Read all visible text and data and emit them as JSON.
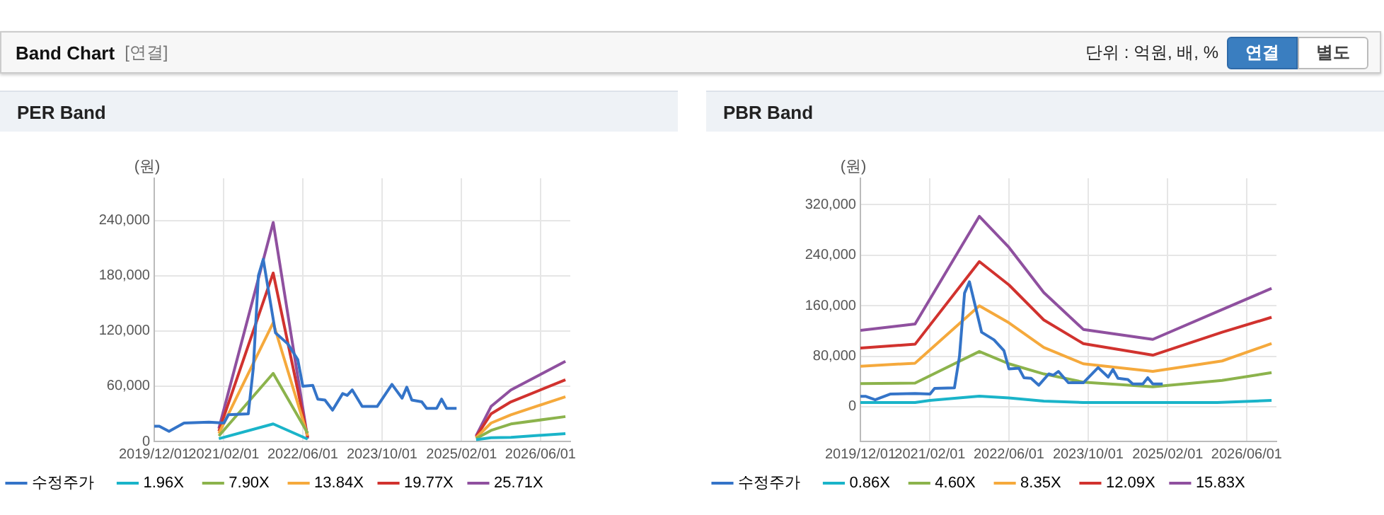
{
  "chart_data": [
    {
      "type": "other",
      "title": "Band Chart",
      "annotations": [
        "[연결]",
        "단위 : 억원, 배, %",
        "연결",
        "별도"
      ]
    },
    {
      "type": "line",
      "title": "PER Band",
      "ylabel": "(원)",
      "xlim": [
        "2019-12-01",
        "2026-12-01"
      ],
      "xticks": [
        {
          "value": "2019-12-01",
          "label": "2019/12/01"
        },
        {
          "value": "2021-02-01",
          "label": "2021/02/01"
        },
        {
          "value": "2022-06-01",
          "label": "2022/06/01"
        },
        {
          "value": "2023-10-01",
          "label": "2023/10/01"
        },
        {
          "value": "2025-02-01",
          "label": "2025/02/01"
        },
        {
          "value": "2026-06-01",
          "label": "2026/06/01"
        }
      ],
      "ylim": [
        0,
        286000
      ],
      "yticks": [
        0,
        {
          "value": 60000,
          "label": "60,000"
        },
        {
          "value": 120000,
          "label": "120,000"
        },
        {
          "value": 180000,
          "label": "180,000"
        },
        {
          "value": 240000,
          "label": "240,000"
        }
      ],
      "grid": true,
      "legend": "bottom",
      "marker": "none",
      "line_style": "solid",
      "series": [
        {
          "name": "수정주가",
          "color": "#3474c8",
          "x": [
            "2019-12",
            "2020-01",
            "2020-03",
            "2020-04",
            "2020-06",
            "2020-11",
            "2021-02",
            "2021-03",
            "2021-07",
            "2021-08",
            "2021-09",
            "2021-10",
            "2021-12-15",
            "2022-03",
            "2022-05",
            "2022-06",
            "2022-08",
            "2022-09",
            "2022-10-15",
            "2022-12",
            "2023-02",
            "2023-03",
            "2023-04",
            "2023-06",
            "2023-09",
            "2023-12",
            "2024-02",
            "2024-03",
            "2024-04",
            "2024-06",
            "2024-07",
            "2024-09",
            "2024-10",
            "2024-11",
            "2025-01"
          ],
          "values": [
            16500,
            16500,
            11000,
            14000,
            20000,
            21000,
            20000,
            29000,
            30000,
            80000,
            180000,
            198000,
            118000,
            106000,
            89000,
            60000,
            61000,
            46000,
            45000,
            34000,
            52000,
            50000,
            56000,
            38000,
            38000,
            62000,
            47000,
            59000,
            45000,
            43000,
            36000,
            36000,
            46000,
            36000,
            36000
          ]
        },
        {
          "name": "1.96X",
          "color": "#1ab4c9",
          "x": [
            "2021-01",
            "2021-12",
            "2022-07",
            "2023-06",
            "2025-05",
            "2025-08",
            "2025-12",
            "2026-11"
          ],
          "values": [
            3000,
            19000,
            2500,
            null,
            2000,
            4000,
            4500,
            8500
          ]
        },
        {
          "name": "7.90X",
          "color": "#8cb34c",
          "x": [
            "2021-01",
            "2021-12",
            "2022-07",
            "2023-06",
            "2025-05",
            "2025-08",
            "2025-12",
            "2026-11"
          ],
          "values": [
            6000,
            74000,
            9000,
            null,
            3000,
            12000,
            19000,
            27000
          ]
        },
        {
          "name": "13.84X",
          "color": "#f5a93c",
          "x": [
            "2021-01",
            "2021-12",
            "2022-07",
            "2023-06",
            "2025-05",
            "2025-08",
            "2025-12",
            "2026-11"
          ],
          "values": [
            8500,
            129000,
            6000,
            null,
            4000,
            20000,
            29000,
            48500
          ]
        },
        {
          "name": "19.77X",
          "color": "#d1322e",
          "x": [
            "2021-01",
            "2021-12",
            "2022-07",
            "2023-06",
            "2025-05",
            "2025-08",
            "2025-12",
            "2026-11"
          ],
          "values": [
            11000,
            183000,
            4500,
            null,
            5000,
            30000,
            43000,
            67000
          ]
        },
        {
          "name": "25.71X",
          "color": "#8f509f",
          "x": [
            "2021-01",
            "2021-12",
            "2022-07",
            "2023-06",
            "2025-05",
            "2025-08",
            "2025-12",
            "2026-11"
          ],
          "values": [
            14000,
            238000,
            3000,
            null,
            6000,
            38000,
            56000,
            87000
          ]
        }
      ]
    },
    {
      "type": "line",
      "title": "PBR Band",
      "ylabel": "(원)",
      "xlim": [
        "2019-12-01",
        "2026-12-01"
      ],
      "xticks": [
        {
          "value": "2019-12-01",
          "label": "2019/12/01"
        },
        {
          "value": "2021-02-01",
          "label": "2021/02/01"
        },
        {
          "value": "2022-06-01",
          "label": "2022/06/01"
        },
        {
          "value": "2023-10-01",
          "label": "2023/10/01"
        },
        {
          "value": "2025-02-01",
          "label": "2025/02/01"
        },
        {
          "value": "2026-06-01",
          "label": "2026/06/01"
        }
      ],
      "ylim": [
        -55000,
        362000
      ],
      "yticks": [
        0,
        {
          "value": 80000,
          "label": "80,000"
        },
        {
          "value": 160000,
          "label": "160,000"
        },
        {
          "value": 240000,
          "label": "240,000"
        },
        {
          "value": 320000,
          "label": "320,000"
        }
      ],
      "grid": true,
      "legend": "bottom",
      "marker": "none",
      "line_style": "solid",
      "series": [
        {
          "name": "수정주가",
          "color": "#3474c8",
          "x": [
            "2019-12",
            "2020-01",
            "2020-03",
            "2020-04",
            "2020-06",
            "2020-11",
            "2021-02",
            "2021-03",
            "2021-07",
            "2021-08",
            "2021-09",
            "2021-10",
            "2021-12-15",
            "2022-03",
            "2022-05",
            "2022-06",
            "2022-08",
            "2022-09",
            "2022-10-15",
            "2022-12",
            "2023-02",
            "2023-03",
            "2023-04",
            "2023-06",
            "2023-09",
            "2023-12",
            "2024-02",
            "2024-03",
            "2024-04",
            "2024-06",
            "2024-07",
            "2024-09",
            "2024-10",
            "2024-11",
            "2025-01"
          ],
          "values": [
            16500,
            16500,
            11000,
            14000,
            20000,
            21000,
            20000,
            29000,
            30000,
            80000,
            180000,
            198000,
            118000,
            106000,
            89000,
            60000,
            61000,
            46000,
            45000,
            34000,
            52000,
            50000,
            56000,
            38000,
            38000,
            62000,
            47000,
            59000,
            45000,
            43000,
            36000,
            36000,
            46000,
            36000,
            36000
          ]
        },
        {
          "name": "0.86X",
          "color": "#1ab4c9",
          "x": [
            "2019-12",
            "2020-11",
            "2021-02",
            "2021-12",
            "2022-06",
            "2023-01",
            "2023-09",
            "2025-12",
            "2026-11"
          ],
          "values": [
            6700,
            6700,
            10000,
            16700,
            14000,
            9000,
            6700,
            6700,
            10000
          ]
        },
        {
          "name": "4.60X",
          "color": "#8cb34c",
          "x": [
            "2019-12",
            "2020-11",
            "2021-12",
            "2022-06",
            "2023-01",
            "2023-09",
            "2024-11",
            "2026-01",
            "2026-11"
          ],
          "values": [
            36700,
            37500,
            87500,
            68000,
            52000,
            39000,
            31700,
            41700,
            54000
          ]
        },
        {
          "name": "8.35X",
          "color": "#f5a93c",
          "x": [
            "2019-12",
            "2020-11",
            "2021-12",
            "2022-06",
            "2023-01",
            "2023-09",
            "2024-11",
            "2026-01",
            "2026-11"
          ],
          "values": [
            64000,
            69000,
            160000,
            133000,
            94000,
            68000,
            56000,
            72500,
            100000
          ]
        },
        {
          "name": "12.09X",
          "color": "#d1322e",
          "x": [
            "2019-12",
            "2020-11",
            "2021-12",
            "2022-06",
            "2023-01",
            "2023-09",
            "2024-11",
            "2026-01",
            "2026-11"
          ],
          "values": [
            93000,
            99000,
            230000,
            193000,
            137500,
            100000,
            81700,
            118000,
            141700
          ]
        },
        {
          "name": "15.83X",
          "color": "#8f509f",
          "x": [
            "2019-12",
            "2020-11",
            "2021-12",
            "2022-06",
            "2023-01",
            "2023-09",
            "2024-11",
            "2026-01",
            "2026-11"
          ],
          "values": [
            121000,
            131000,
            301700,
            252500,
            181000,
            122500,
            106700,
            154000,
            187500
          ]
        }
      ]
    }
  ]
}
